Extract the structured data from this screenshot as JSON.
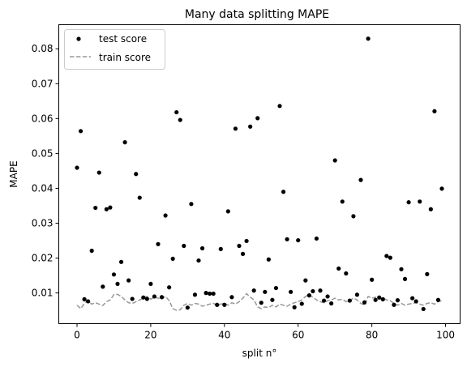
{
  "chart_data": {
    "type": "scatter",
    "title": "Many data splitting MAPE",
    "xlabel": "split n°",
    "ylabel": "MAPE",
    "xlim": [
      -4.95,
      103.95
    ],
    "ylim": [
      0.0012,
      0.0869
    ],
    "xticks": [
      0,
      20,
      40,
      60,
      80,
      100
    ],
    "yticks": [
      0.01,
      0.02,
      0.03,
      0.04,
      0.05,
      0.06,
      0.07,
      0.08
    ],
    "ytick_labels": [
      "0.01",
      "0.02",
      "0.03",
      "0.04",
      "0.05",
      "0.06",
      "0.07",
      "0.08"
    ],
    "grid": false,
    "legend": {
      "position": "top-left",
      "entries": [
        "test score",
        "train score"
      ]
    },
    "series": [
      {
        "name": "test score",
        "kind": "scatter",
        "color": "#000000",
        "x": [
          0,
          1,
          2,
          3,
          4,
          5,
          6,
          7,
          8,
          9,
          10,
          11,
          12,
          13,
          14,
          15,
          16,
          17,
          18,
          19,
          20,
          21,
          22,
          23,
          24,
          25,
          26,
          27,
          28,
          29,
          30,
          31,
          32,
          33,
          34,
          35,
          36,
          37,
          38,
          39,
          40,
          41,
          42,
          43,
          44,
          45,
          46,
          47,
          48,
          49,
          50,
          51,
          52,
          53,
          54,
          55,
          56,
          57,
          58,
          59,
          60,
          61,
          62,
          63,
          64,
          65,
          66,
          67,
          68,
          69,
          70,
          71,
          72,
          73,
          74,
          75,
          76,
          77,
          78,
          79,
          80,
          81,
          82,
          83,
          84,
          85,
          86,
          87,
          88,
          89,
          90,
          91,
          92,
          93,
          94,
          95,
          96,
          97,
          98,
          99
        ],
        "y": [
          0.0459,
          0.0564,
          0.0082,
          0.0076,
          0.0221,
          0.0344,
          0.0445,
          0.0118,
          0.034,
          0.0345,
          0.0153,
          0.0126,
          0.0189,
          0.0532,
          0.0136,
          0.0083,
          0.0441,
          0.0373,
          0.0087,
          0.0083,
          0.0126,
          0.009,
          0.024,
          0.0088,
          0.0322,
          0.0116,
          0.0198,
          0.0618,
          0.0596,
          0.0235,
          0.0058,
          0.0355,
          0.0095,
          0.0193,
          0.0228,
          0.01,
          0.0098,
          0.0098,
          0.0066,
          0.0226,
          0.0066,
          0.0334,
          0.0088,
          0.0571,
          0.0235,
          0.0212,
          0.0249,
          0.0577,
          0.0107,
          0.0601,
          0.0072,
          0.0103,
          0.0196,
          0.008,
          0.0114,
          0.0636,
          0.039,
          0.0254,
          0.0103,
          0.0059,
          0.0251,
          0.0069,
          0.0136,
          0.0093,
          0.0105,
          0.0256,
          0.0107,
          0.0078,
          0.009,
          0.007,
          0.048,
          0.017,
          0.0362,
          0.0156,
          0.0078,
          0.032,
          0.0095,
          0.0424,
          0.0073,
          0.0829,
          0.0138,
          0.008,
          0.0087,
          0.0082,
          0.0206,
          0.0201,
          0.0066,
          0.0079,
          0.0168,
          0.014,
          0.036,
          0.0085,
          0.0076,
          0.0362,
          0.0054,
          0.0154,
          0.034,
          0.0621,
          0.008,
          0.0399
        ]
      },
      {
        "name": "train score",
        "kind": "line",
        "style": "dashed",
        "color": "#999999",
        "x": [
          0,
          1,
          2,
          3,
          4,
          5,
          6,
          7,
          8,
          9,
          10,
          11,
          12,
          13,
          14,
          15,
          16,
          17,
          18,
          19,
          20,
          21,
          22,
          23,
          24,
          25,
          26,
          27,
          28,
          29,
          30,
          31,
          32,
          33,
          34,
          35,
          36,
          37,
          38,
          39,
          40,
          41,
          42,
          43,
          44,
          45,
          46,
          47,
          48,
          49,
          50,
          51,
          52,
          53,
          54,
          55,
          56,
          57,
          58,
          59,
          60,
          61,
          62,
          63,
          64,
          65,
          66,
          67,
          68,
          69,
          70,
          71,
          72,
          73,
          74,
          75,
          76,
          77,
          78,
          79,
          80,
          81,
          82,
          83,
          84,
          85,
          86,
          87,
          88,
          89,
          90,
          91,
          92,
          93,
          94,
          95,
          96,
          97,
          98,
          99
        ],
        "y": [
          0.0065,
          0.0055,
          0.007,
          0.0078,
          0.0068,
          0.0072,
          0.0068,
          0.0064,
          0.0075,
          0.008,
          0.0095,
          0.0096,
          0.009,
          0.008,
          0.0072,
          0.007,
          0.0075,
          0.008,
          0.0085,
          0.009,
          0.0082,
          0.0088,
          0.0085,
          0.0083,
          0.009,
          0.0078,
          0.0055,
          0.005,
          0.0052,
          0.0065,
          0.007,
          0.0065,
          0.007,
          0.0068,
          0.0062,
          0.0065,
          0.0068,
          0.007,
          0.0065,
          0.0068,
          0.007,
          0.0065,
          0.0072,
          0.0068,
          0.0075,
          0.0085,
          0.0098,
          0.0088,
          0.008,
          0.006,
          0.0055,
          0.006,
          0.0058,
          0.0065,
          0.006,
          0.0068,
          0.0065,
          0.0062,
          0.0068,
          0.0072,
          0.0075,
          0.008,
          0.009,
          0.0095,
          0.0088,
          0.008,
          0.0075,
          0.0072,
          0.0078,
          0.008,
          0.0085,
          0.008,
          0.0082,
          0.0075,
          0.0078,
          0.0085,
          0.008,
          0.007,
          0.0065,
          0.009,
          0.0085,
          0.0088,
          0.0082,
          0.0085,
          0.008,
          0.0078,
          0.007,
          0.0065,
          0.007,
          0.0065,
          0.0068,
          0.007,
          0.0072,
          0.0068,
          0.0065,
          0.007,
          0.0072,
          0.0068,
          0.0075,
          0.0078
        ]
      }
    ]
  }
}
